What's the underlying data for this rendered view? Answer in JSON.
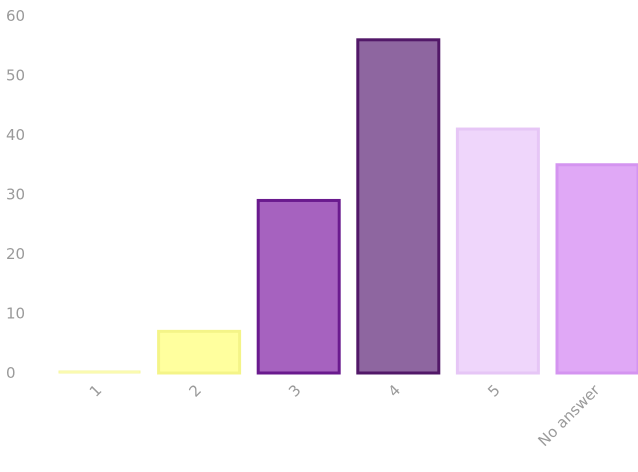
{
  "chart_data": {
    "type": "bar",
    "categories": [
      "1",
      "2",
      "3",
      "4",
      "5",
      "No answer"
    ],
    "values": [
      0,
      7,
      29,
      56,
      41,
      35
    ],
    "ylim": [
      0,
      60
    ],
    "yticks": [
      0,
      10,
      20,
      30,
      40,
      50,
      60
    ],
    "grid": false,
    "legend": "none",
    "bar_colors": [
      {
        "fill": "#ffffbf",
        "stroke": "#f6f6a0"
      },
      {
        "fill": "#ffff9e",
        "stroke": "#f4f488"
      },
      {
        "fill": "#a662bf",
        "stroke": "#6a1a8e"
      },
      {
        "fill": "#8e66a0",
        "stroke": "#521868"
      },
      {
        "fill": "#efd6fb",
        "stroke": "#e6c6f6"
      },
      {
        "fill": "#e0a8f6",
        "stroke": "#d494f0"
      }
    ]
  }
}
